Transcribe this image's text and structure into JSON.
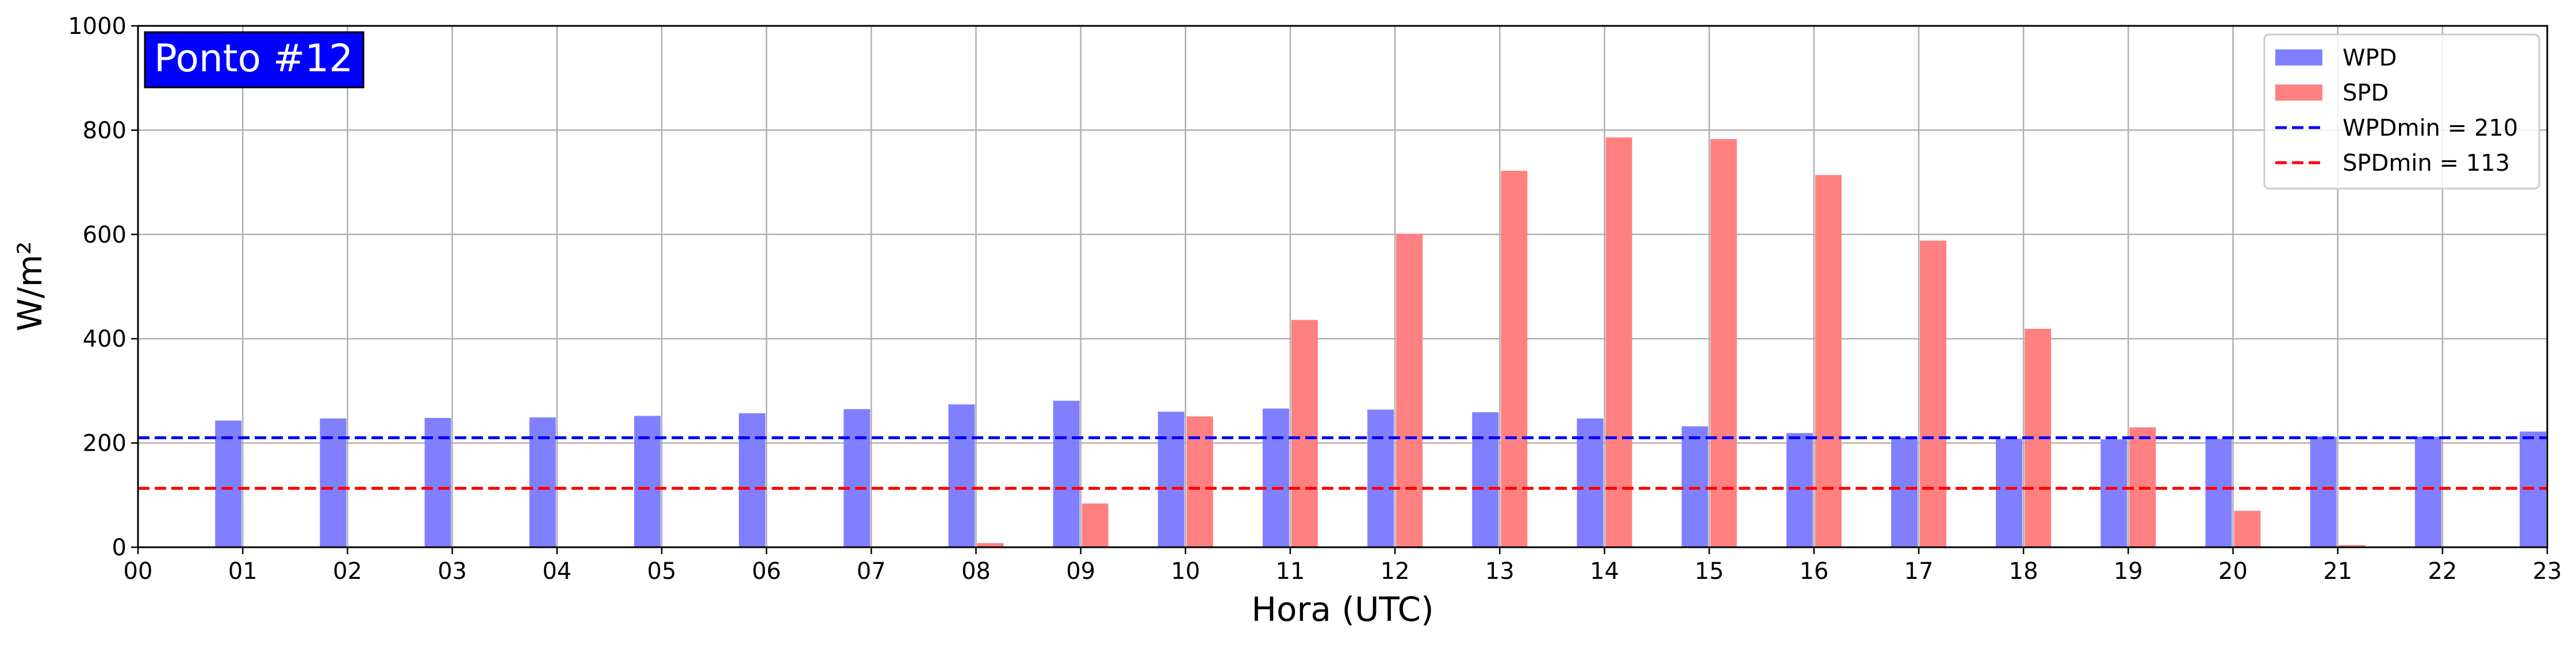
{
  "chart_data": {
    "type": "bar",
    "title": "",
    "badge": "Ponto #12",
    "xlabel": "Hora (UTC)",
    "ylabel": "W/m²",
    "ylim": [
      0,
      1000
    ],
    "xlim": [
      0,
      23
    ],
    "yticks": [
      "0",
      "200",
      "400",
      "600",
      "800",
      "1000"
    ],
    "xticks": [
      "00",
      "01",
      "02",
      "03",
      "04",
      "05",
      "06",
      "07",
      "08",
      "09",
      "10",
      "11",
      "12",
      "13",
      "14",
      "15",
      "16",
      "17",
      "18",
      "19",
      "20",
      "21",
      "22",
      "23"
    ],
    "grid": true,
    "legend_position": "top-right",
    "series": [
      {
        "name": "WPD",
        "color": "#8080ff",
        "hours": [
          1,
          2,
          3,
          4,
          5,
          6,
          7,
          8,
          9,
          10,
          11,
          12,
          13,
          14,
          15,
          16,
          17,
          18,
          19,
          20,
          21,
          22,
          23
        ],
        "values": [
          243,
          247,
          248,
          249,
          252,
          257,
          265,
          274,
          281,
          260,
          266,
          264,
          259,
          247,
          232,
          219,
          210,
          208,
          207,
          208,
          212,
          212,
          222
        ]
      },
      {
        "name": "SPD",
        "color": "#ff8080",
        "hours": [
          1,
          2,
          3,
          4,
          5,
          6,
          7,
          8,
          9,
          10,
          11,
          12,
          13,
          14,
          15,
          16,
          17,
          18,
          19,
          20,
          21,
          22,
          23
        ],
        "values": [
          0,
          0,
          0,
          0,
          0,
          0,
          0,
          8,
          84,
          251,
          436,
          601,
          722,
          786,
          783,
          714,
          588,
          419,
          230,
          70,
          4,
          0,
          0
        ]
      }
    ],
    "reference_lines": [
      {
        "name": "WPDmin = 210",
        "value": 210,
        "color": "#0000ff",
        "style": "dashed"
      },
      {
        "name": "SPDmin = 113",
        "value": 113,
        "color": "#ff0000",
        "style": "dashed"
      }
    ]
  }
}
